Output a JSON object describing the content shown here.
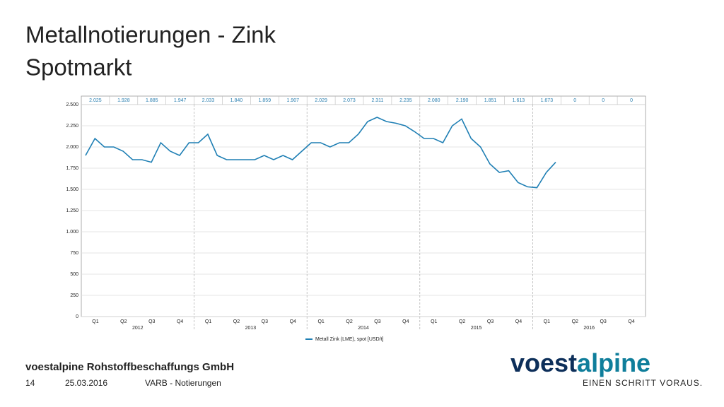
{
  "slide": {
    "title": "Metallnotierungen - Zink",
    "subtitle": "Spotmarkt",
    "company": "voestalpine Rohstoffbeschaffungs GmbH",
    "page": "14",
    "date": "25.03.2016",
    "section": "VARB - Notierungen",
    "logo": [
      "voest",
      "alpine"
    ],
    "slogan": "EINEN SCHRITT VORAUS."
  },
  "chart_data": {
    "type": "line",
    "quarter_labels": [
      "Q1",
      "Q2",
      "Q3",
      "Q4",
      "Q1",
      "Q2",
      "Q3",
      "Q4",
      "Q1",
      "Q2",
      "Q3",
      "Q4",
      "Q1",
      "Q2",
      "Q3",
      "Q4",
      "Q1",
      "Q2",
      "Q3",
      "Q4"
    ],
    "years": [
      "2012",
      "2013",
      "2014",
      "2015",
      "2016"
    ],
    "quarter_averages": [
      "2.025",
      "1.928",
      "1.885",
      "1.947",
      "2.033",
      "1.840",
      "1.859",
      "1.907",
      "2.029",
      "2.073",
      "2.311",
      "2.235",
      "2.080",
      "2.190",
      "1.851",
      "1.613",
      "1.673",
      "0",
      "0",
      "0"
    ],
    "series": [
      {
        "name": "Metall Zink (LME), spot [USD/t]",
        "color": "#1f7fb4",
        "values": [
          1900,
          2100,
          2000,
          2000,
          1950,
          1850,
          1850,
          1820,
          2050,
          1950,
          1900,
          2050,
          2050,
          2150,
          1900,
          1850,
          1850,
          1850,
          1850,
          1900,
          1850,
          1900,
          1850,
          1950,
          2050,
          2050,
          2000,
          2050,
          2050,
          2150,
          2300,
          2350,
          2300,
          2280,
          2250,
          2180,
          2100,
          2100,
          2050,
          2250,
          2330,
          2100,
          2000,
          1800,
          1700,
          1720,
          1580,
          1530,
          1520,
          1700,
          1820
        ]
      }
    ],
    "ylim": [
      0,
      2500
    ],
    "yticks": [
      0,
      250,
      500,
      750,
      {
        "value": 1000,
        "label": "1.000"
      },
      {
        "value": 1250,
        "label": "1.250"
      },
      {
        "value": 1500,
        "label": "1.500"
      },
      {
        "value": 1750,
        "label": "1.750"
      },
      {
        "value": 2000,
        "label": "2.000"
      },
      {
        "value": 2250,
        "label": "2.250"
      },
      {
        "value": 2500,
        "label": "2.500"
      }
    ],
    "grid": true,
    "legend": "bottom"
  }
}
